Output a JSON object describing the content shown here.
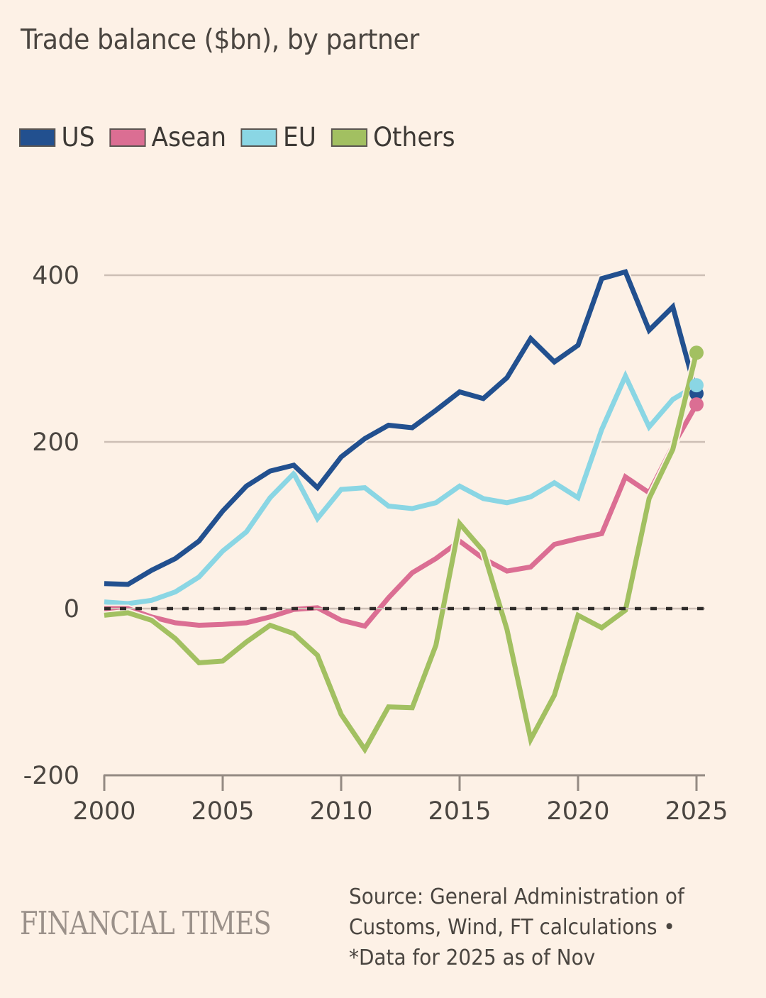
{
  "title": "Trade balance ($bn), by partner",
  "legend": [
    {
      "label": "US",
      "color": "#22508f"
    },
    {
      "label": "Asean",
      "color": "#db6e93"
    },
    {
      "label": "EU",
      "color": "#8ad6e4"
    },
    {
      "label": "Others",
      "color": "#a2c061"
    }
  ],
  "footer": {
    "brand": "FINANCIAL TIMES",
    "source_lines": [
      "Source: General Administration of",
      "Customs, Wind, FT calculations •",
      "*Data for 2025 as of Nov"
    ]
  },
  "chart_data": {
    "type": "line",
    "title": "Trade balance ($bn), by partner",
    "xlabel": "",
    "ylabel": "",
    "x": [
      2000,
      2001,
      2002,
      2003,
      2004,
      2005,
      2006,
      2007,
      2008,
      2009,
      2010,
      2011,
      2012,
      2013,
      2014,
      2015,
      2016,
      2017,
      2018,
      2019,
      2020,
      2021,
      2022,
      2023,
      2024,
      2025
    ],
    "xlim": [
      2000,
      2025.4
    ],
    "ylim": [
      -200,
      400
    ],
    "xticks": [
      2000,
      2005,
      2010,
      2015,
      2020,
      2025
    ],
    "xtick_labels": [
      "2000",
      "2005",
      "2010",
      "2015",
      "2020",
      "2025"
    ],
    "yticks": [
      -200,
      0,
      200,
      400
    ],
    "ytick_labels": [
      "-200",
      "0",
      "200",
      "400"
    ],
    "grid": true,
    "zero_line": "dashed",
    "legend_position": "top-left",
    "end_markers": true,
    "annotations": [
      "*Data for 2025 as of Nov"
    ],
    "series": [
      {
        "name": "EU",
        "color": "#8ad6e4",
        "values": [
          8,
          6,
          10,
          20,
          38,
          69,
          92,
          133,
          162,
          108,
          143,
          145,
          123,
          120,
          127,
          147,
          132,
          127,
          134,
          151,
          133,
          215,
          279,
          218,
          251,
          268
        ]
      },
      {
        "name": "US",
        "color": "#22508f",
        "values": [
          30,
          29,
          46,
          60,
          81,
          117,
          147,
          165,
          172,
          145,
          182,
          204,
          220,
          217,
          238,
          260,
          252,
          277,
          324,
          296,
          316,
          396,
          404,
          334,
          362,
          258
        ]
      },
      {
        "name": "Asean",
        "color": "#db6e93",
        "values": [
          0,
          0,
          -10,
          -17,
          -20,
          -19,
          -17,
          -10,
          -1,
          1,
          -14,
          -21,
          13,
          43,
          60,
          81,
          60,
          45,
          50,
          77,
          84,
          90,
          158,
          139,
          195,
          245
        ]
      },
      {
        "name": "Others",
        "color": "#a2c061",
        "values": [
          -8,
          -5,
          -14,
          -36,
          -65,
          -63,
          -40,
          -20,
          -30,
          -56,
          -127,
          -169,
          -118,
          -119,
          -44,
          102,
          69,
          -25,
          -157,
          -104,
          -8,
          -23,
          -2,
          132,
          191,
          307
        ]
      }
    ]
  }
}
